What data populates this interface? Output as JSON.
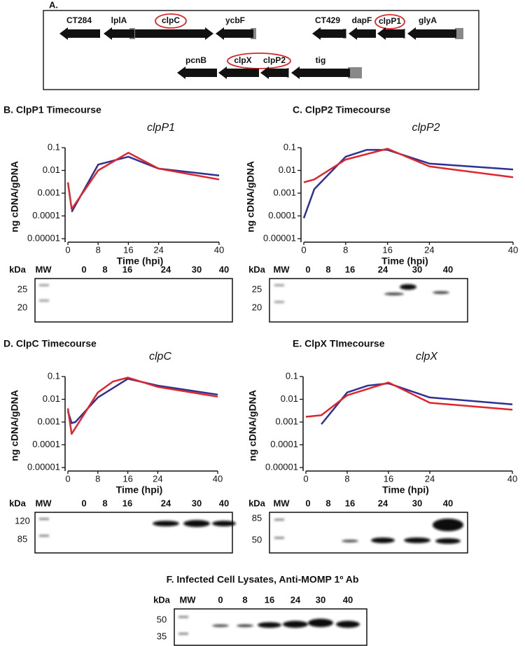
{
  "gene_map": {
    "panel_label": "A.",
    "genes": [
      "CT284",
      "lplA",
      "clpC",
      "ycbF",
      "CT429",
      "dapF",
      "clpP1",
      "glyA",
      "pcnB",
      "clpX",
      "clpP2",
      "tig"
    ]
  },
  "chart_data": [
    {
      "type": "line",
      "panel_title": "B. ClpP1 Timecourse",
      "title": "clpP1",
      "x_label": "Time (hpi)",
      "y_label": "ng cDNA/gDNA",
      "log_y": true,
      "xlim": [
        0,
        40
      ],
      "xticks": [
        0,
        8,
        16,
        24,
        40
      ],
      "ylim": [
        1e-05,
        0.1
      ],
      "yticks": [
        0.1,
        0.01,
        0.001,
        0.0001,
        1e-05
      ],
      "series": [
        {
          "color": "#2e3192",
          "x": [
            1,
            8,
            16,
            24,
            40
          ],
          "values": [
            0.00015,
            0.018,
            0.04,
            0.012,
            0.006
          ]
        },
        {
          "color": "#e0262b",
          "x": [
            0,
            1,
            8,
            16,
            24,
            40
          ],
          "values": [
            0.003,
            0.0002,
            0.01,
            0.06,
            0.012,
            0.004
          ]
        }
      ]
    },
    {
      "type": "line",
      "panel_title": "C. ClpP2 Timecourse",
      "title": "clpP2",
      "x_label": "Time (hpi)",
      "y_label": "ng cDNA/gDNA",
      "log_y": true,
      "xlim": [
        0,
        40
      ],
      "xticks": [
        0,
        8,
        16,
        24,
        40
      ],
      "ylim": [
        1e-05,
        0.1
      ],
      "yticks": [
        0.1,
        0.01,
        0.001,
        0.0001,
        1e-05
      ],
      "series": [
        {
          "color": "#2e3192",
          "x": [
            0,
            2,
            8,
            12,
            16,
            24,
            40
          ],
          "values": [
            8e-05,
            0.0015,
            0.04,
            0.08,
            0.08,
            0.02,
            0.011
          ]
        },
        {
          "color": "#e0262b",
          "x": [
            0,
            2,
            8,
            16,
            24,
            40
          ],
          "values": [
            0.003,
            0.004,
            0.03,
            0.09,
            0.015,
            0.005
          ]
        }
      ]
    },
    {
      "type": "line",
      "panel_title": "D. ClpC Timecourse",
      "title": "clpC",
      "x_label": "Time (hpi)",
      "y_label": "ng cDNA/gDNA",
      "log_y": true,
      "xlim": [
        0,
        40
      ],
      "xticks": [
        0,
        8,
        16,
        24,
        40
      ],
      "ylim": [
        1e-05,
        0.1
      ],
      "yticks": [
        0.1,
        0.01,
        0.001,
        0.0001,
        1e-05
      ],
      "series": [
        {
          "color": "#2e3192",
          "x": [
            0,
            1,
            2,
            8,
            16,
            24,
            40
          ],
          "values": [
            0.003,
            0.0009,
            0.001,
            0.012,
            0.08,
            0.04,
            0.016
          ]
        },
        {
          "color": "#e0262b",
          "x": [
            0,
            1,
            8,
            12,
            16,
            24,
            40
          ],
          "values": [
            0.004,
            0.0003,
            0.02,
            0.06,
            0.09,
            0.035,
            0.013
          ]
        }
      ]
    },
    {
      "type": "line",
      "panel_title": "E. ClpX TImecourse",
      "title": "clpX",
      "x_label": "Time (hpi)",
      "y_label": "ng cDNA/gDNA",
      "log_y": true,
      "xlim": [
        0,
        40
      ],
      "xticks": [
        0,
        8,
        16,
        24,
        40
      ],
      "ylim": [
        1e-05,
        0.1
      ],
      "yticks": [
        0.1,
        0.01,
        0.001,
        0.0001,
        1e-05
      ],
      "series": [
        {
          "color": "#2e3192",
          "x": [
            3,
            8,
            12,
            16,
            24,
            40
          ],
          "values": [
            0.0008,
            0.02,
            0.04,
            0.05,
            0.012,
            0.006
          ]
        },
        {
          "color": "#e0262b",
          "x": [
            0,
            3,
            8,
            16,
            24,
            40
          ],
          "values": [
            0.0017,
            0.002,
            0.015,
            0.055,
            0.007,
            0.0035
          ]
        }
      ]
    }
  ],
  "panel_f_title": "F.  Infected Cell Lysates, Anti-MOMP 1º Ab",
  "blots": [
    {
      "header": [
        "kDa",
        "MW",
        "0",
        "8",
        "16",
        "24",
        "30",
        "40"
      ],
      "markers": [
        "25",
        "20"
      ]
    },
    {
      "header": [
        "kDa",
        "MW",
        "0",
        "8",
        "16",
        "24",
        "30",
        "40"
      ],
      "markers": [
        "25",
        "20"
      ]
    },
    {
      "header": [
        "kDa",
        "MW",
        "0",
        "8",
        "16",
        "24",
        "30",
        "40"
      ],
      "markers": [
        "120",
        "85"
      ]
    },
    {
      "header": [
        "kDa",
        "MW",
        "0",
        "8",
        "16",
        "24",
        "30",
        "40"
      ],
      "markers": [
        "85",
        "50"
      ]
    },
    {
      "header": [
        "kDa",
        "MW",
        "0",
        "8",
        "16",
        "24",
        "30",
        "40"
      ],
      "markers": [
        "50",
        "35"
      ]
    }
  ]
}
